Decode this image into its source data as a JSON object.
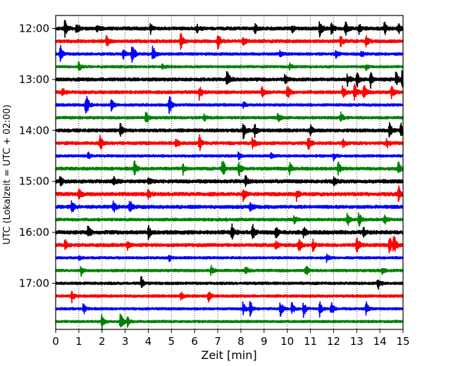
{
  "chart_data": {
    "type": "line",
    "subtype": "helicorder seismogram",
    "xlabel": "Zeit  [min]",
    "ylabel": "UTC (Lokalzeit = UTC + 02:00)",
    "xlim": [
      0,
      15
    ],
    "x_ticks": [
      "0",
      "1",
      "2",
      "3",
      "4",
      "5",
      "6",
      "7",
      "8",
      "9",
      "10",
      "11",
      "12",
      "13",
      "14",
      "15"
    ],
    "y_ticks": [
      "12:00",
      "13:00",
      "14:00",
      "15:00",
      "16:00",
      "17:00"
    ],
    "y_tick_rows": [
      0,
      4,
      8,
      12,
      16,
      20
    ],
    "grid": "vertical dotted at every minute",
    "trace_colors": [
      "#000000",
      "#ff0000",
      "#0000ff",
      "#008000"
    ],
    "traces": [
      {
        "start": "12:00",
        "noise": 0.9,
        "events": [
          [
            0.4,
            2.0
          ],
          [
            0.9,
            1.6
          ],
          [
            1.8,
            1.0
          ],
          [
            4.1,
            1.0
          ],
          [
            6.1,
            1.0
          ],
          [
            8.6,
            1.1
          ],
          [
            10.2,
            1.0
          ],
          [
            11.4,
            2.2
          ],
          [
            11.9,
            1.2
          ],
          [
            12.5,
            2.0
          ],
          [
            13.1,
            1.1
          ],
          [
            14.2,
            1.6
          ],
          [
            14.8,
            1.3
          ]
        ]
      },
      {
        "start": "12:15",
        "noise": 0.8,
        "events": [
          [
            2.2,
            1.3
          ],
          [
            5.4,
            2.0
          ],
          [
            7.0,
            2.2
          ],
          [
            8.1,
            1.0
          ],
          [
            12.3,
            1.2
          ],
          [
            13.4,
            1.5
          ]
        ]
      },
      {
        "start": "12:30",
        "noise": 0.6,
        "events": [
          [
            0.2,
            2.0
          ],
          [
            2.9,
            1.4
          ],
          [
            3.3,
            3.2
          ],
          [
            4.2,
            2.4
          ],
          [
            9.7,
            0.8
          ],
          [
            12.1,
            0.8
          ],
          [
            13.2,
            0.9
          ]
        ]
      },
      {
        "start": "12:45",
        "noise": 0.5,
        "events": [
          [
            1.0,
            1.2
          ],
          [
            4.6,
            0.8
          ],
          [
            10.1,
            0.8
          ],
          [
            13.4,
            0.7
          ]
        ]
      },
      {
        "start": "13:00",
        "noise": 0.9,
        "events": [
          [
            7.4,
            2.6
          ],
          [
            9.9,
            1.1
          ],
          [
            12.6,
            1.4
          ],
          [
            13.0,
            2.0
          ],
          [
            13.6,
            1.6
          ],
          [
            14.7,
            1.8
          ],
          [
            14.97,
            2.4
          ]
        ]
      },
      {
        "start": "13:15",
        "noise": 0.8,
        "events": [
          [
            0.3,
            1.0
          ],
          [
            6.2,
            1.6
          ],
          [
            8.9,
            1.2
          ],
          [
            10.0,
            1.9
          ],
          [
            12.4,
            2.0
          ],
          [
            12.9,
            2.2
          ],
          [
            13.3,
            2.0
          ],
          [
            14.5,
            1.6
          ]
        ]
      },
      {
        "start": "13:30",
        "noise": 0.6,
        "events": [
          [
            1.3,
            3.2
          ],
          [
            2.4,
            1.3
          ],
          [
            4.9,
            2.6
          ],
          [
            8.1,
            0.8
          ]
        ]
      },
      {
        "start": "13:45",
        "noise": 0.6,
        "events": [
          [
            3.9,
            1.6
          ],
          [
            6.4,
            0.9
          ],
          [
            9.6,
            1.0
          ],
          [
            12.3,
            1.3
          ]
        ]
      },
      {
        "start": "14:00",
        "noise": 0.9,
        "events": [
          [
            2.8,
            1.6
          ],
          [
            8.1,
            1.9
          ],
          [
            8.6,
            1.3
          ],
          [
            11.0,
            1.1
          ],
          [
            14.4,
            1.9
          ],
          [
            14.9,
            2.2
          ]
        ]
      },
      {
        "start": "14:15",
        "noise": 0.8,
        "events": [
          [
            1.9,
            2.2
          ],
          [
            5.2,
            1.5
          ],
          [
            6.2,
            2.0
          ],
          [
            8.5,
            1.7
          ],
          [
            10.9,
            1.5
          ],
          [
            12.4,
            1.1
          ],
          [
            14.3,
            1.1
          ]
        ]
      },
      {
        "start": "14:30",
        "noise": 0.5,
        "events": [
          [
            1.4,
            0.8
          ],
          [
            7.9,
            0.9
          ],
          [
            9.3,
            0.8
          ],
          [
            12.0,
            0.8
          ]
        ]
      },
      {
        "start": "14:45",
        "noise": 0.8,
        "events": [
          [
            3.4,
            1.8
          ],
          [
            5.5,
            1.1
          ],
          [
            7.2,
            2.5
          ],
          [
            7.9,
            2.0
          ],
          [
            10.1,
            1.3
          ],
          [
            12.2,
            1.5
          ],
          [
            14.8,
            1.5
          ]
        ]
      },
      {
        "start": "15:00",
        "noise": 1.0,
        "events": [
          [
            0.2,
            1.2
          ],
          [
            2.5,
            1.1
          ],
          [
            4.0,
            1.0
          ],
          [
            8.2,
            1.1
          ],
          [
            12.0,
            1.1
          ]
        ]
      },
      {
        "start": "15:15",
        "noise": 1.0,
        "events": [
          [
            1.0,
            1.3
          ],
          [
            4.0,
            1.3
          ],
          [
            8.1,
            1.4
          ],
          [
            10.4,
            1.3
          ],
          [
            14.8,
            1.8
          ]
        ]
      },
      {
        "start": "15:30",
        "noise": 0.9,
        "events": [
          [
            0.7,
            1.6
          ],
          [
            2.5,
            1.4
          ],
          [
            3.2,
            1.6
          ],
          [
            8.4,
            1.2
          ]
        ]
      },
      {
        "start": "15:45",
        "noise": 0.7,
        "events": [
          [
            10.3,
            1.1
          ],
          [
            12.6,
            1.5
          ],
          [
            13.1,
            1.8
          ],
          [
            14.2,
            1.1
          ]
        ]
      },
      {
        "start": "16:00",
        "noise": 1.1,
        "events": [
          [
            1.4,
            1.4
          ],
          [
            4.0,
            1.6
          ],
          [
            7.6,
            2.0
          ],
          [
            8.5,
            1.9
          ],
          [
            9.5,
            1.4
          ],
          [
            10.7,
            1.3
          ],
          [
            13.3,
            1.2
          ]
        ]
      },
      {
        "start": "16:15",
        "noise": 0.9,
        "events": [
          [
            0.4,
            1.3
          ],
          [
            3.1,
            1.2
          ],
          [
            9.5,
            1.2
          ],
          [
            10.5,
            1.7
          ],
          [
            11.1,
            1.4
          ],
          [
            13.0,
            2.3
          ],
          [
            14.4,
            2.6
          ],
          [
            14.6,
            2.4
          ]
        ]
      },
      {
        "start": "16:30",
        "noise": 0.5,
        "events": [
          [
            1.0,
            0.7
          ],
          [
            4.9,
            0.7
          ],
          [
            11.7,
            0.8
          ]
        ]
      },
      {
        "start": "16:45",
        "noise": 0.6,
        "events": [
          [
            1.1,
            1.0
          ],
          [
            6.7,
            1.1
          ],
          [
            8.2,
            1.1
          ],
          [
            10.8,
            1.5
          ],
          [
            14.1,
            1.0
          ]
        ]
      },
      {
        "start": "17:00",
        "noise": 0.6,
        "events": [
          [
            3.7,
            1.6
          ],
          [
            13.9,
            1.8
          ]
        ]
      },
      {
        "start": "17:15",
        "noise": 0.6,
        "events": [
          [
            0.7,
            1.4
          ],
          [
            5.4,
            1.1
          ],
          [
            6.6,
            1.6
          ]
        ]
      },
      {
        "start": "17:30",
        "noise": 0.5,
        "events": [
          [
            1.2,
            1.2
          ],
          [
            8.1,
            1.8
          ],
          [
            8.4,
            2.0
          ],
          [
            9.7,
            2.3
          ],
          [
            10.2,
            1.7
          ],
          [
            10.7,
            2.0
          ],
          [
            11.4,
            1.6
          ],
          [
            11.9,
            1.6
          ],
          [
            13.4,
            1.8
          ]
        ]
      },
      {
        "start": "17:45",
        "noise": 0.5,
        "events": [
          [
            2.0,
            1.8
          ],
          [
            2.8,
            2.4
          ],
          [
            3.1,
            1.2
          ]
        ]
      }
    ]
  }
}
